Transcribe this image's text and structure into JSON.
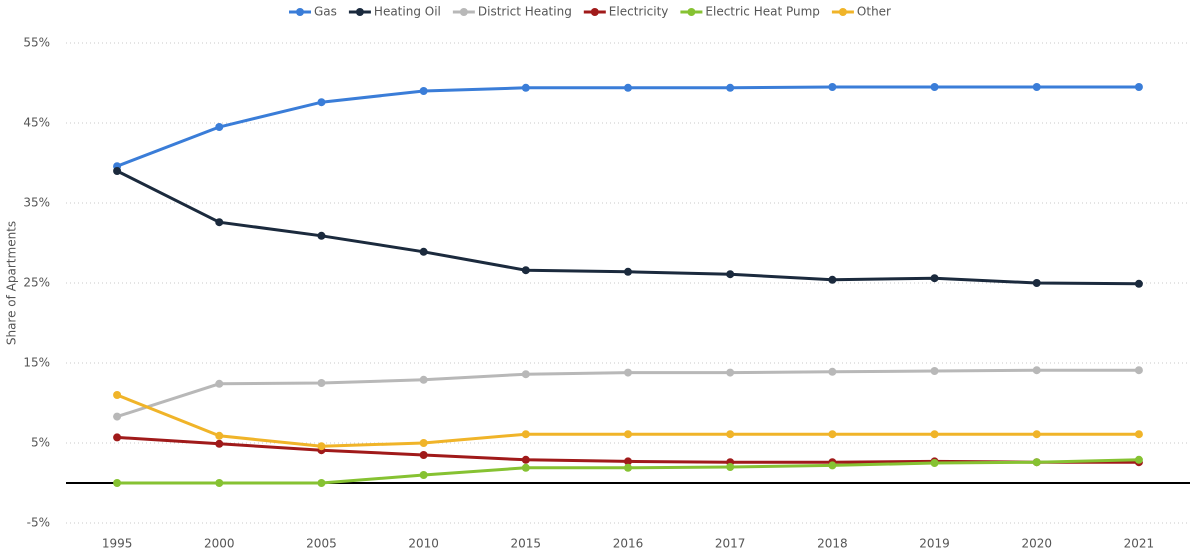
{
  "chart_data": {
    "type": "line",
    "y_label": "Share of Apartments",
    "categories": [
      "1995",
      "2000",
      "2005",
      "2010",
      "2015",
      "2016",
      "2017",
      "2018",
      "2019",
      "2020",
      "2021"
    ],
    "series": [
      {
        "name": "Gas",
        "color": "#3a7dd8",
        "values": [
          39.6,
          44.5,
          47.6,
          49.0,
          49.4,
          49.4,
          49.4,
          49.5,
          49.5,
          49.5,
          49.5
        ]
      },
      {
        "name": "Heating Oil",
        "color": "#1b2a3d",
        "values": [
          39.0,
          32.6,
          30.9,
          28.9,
          26.6,
          26.4,
          26.1,
          25.4,
          25.6,
          25.0,
          24.9
        ]
      },
      {
        "name": "District Heating",
        "color": "#b8b8b8",
        "values": [
          8.3,
          12.4,
          12.5,
          12.9,
          13.6,
          13.8,
          13.8,
          13.9,
          14.0,
          14.1,
          14.1
        ]
      },
      {
        "name": "Electricity",
        "color": "#a01a1a",
        "values": [
          5.7,
          4.9,
          4.1,
          3.5,
          2.9,
          2.7,
          2.6,
          2.6,
          2.7,
          2.6,
          2.6
        ]
      },
      {
        "name": "Electric Heat Pump",
        "color": "#86c232",
        "values": [
          0,
          0,
          0,
          1.0,
          1.9,
          1.9,
          2.0,
          2.2,
          2.5,
          2.6,
          2.9
        ]
      },
      {
        "name": "Other",
        "color": "#f0b429",
        "values": [
          11.0,
          5.9,
          4.6,
          5.0,
          6.1,
          6.1,
          6.1,
          6.1,
          6.1,
          6.1,
          6.1
        ]
      }
    ],
    "ylim": [
      -5,
      55
    ],
    "yticks": [
      {
        "value": 55,
        "label": "55%"
      },
      {
        "value": 45,
        "label": "45%"
      },
      {
        "value": 35,
        "label": "35%"
      },
      {
        "value": 25,
        "label": "25%"
      },
      {
        "value": 15,
        "label": "15%"
      },
      {
        "value": 5,
        "label": "5%"
      },
      {
        "value": -5,
        "label": "-5%"
      }
    ],
    "grid": true
  }
}
